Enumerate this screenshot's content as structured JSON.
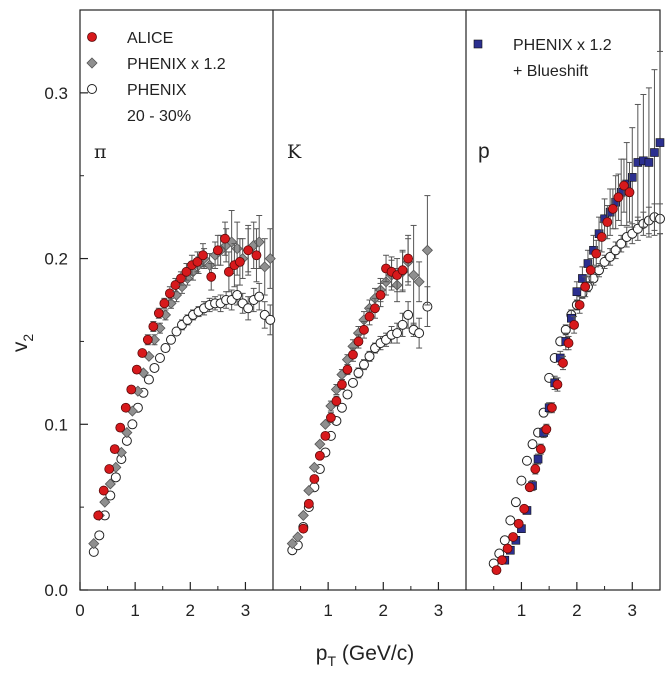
{
  "chart_data": {
    "type": "scatter",
    "y_axis": {
      "label_main": "v",
      "label_sub": "2",
      "range": [
        0.0,
        0.35
      ],
      "ticks": [
        "0.0",
        "0.1",
        "0.2",
        "0.3"
      ]
    },
    "x_axis": {
      "label_main": "p",
      "label_sub": "T",
      "label_rest": " (GeV/c)",
      "range": [
        0,
        3.5
      ]
    },
    "colors": {
      "alice": "#d7191c",
      "phenix_scaled": "#8f8f8f",
      "phenix_open": "#ffffff",
      "blueshift": "#2b2f8f",
      "errorbar": "#555555"
    },
    "panels": [
      {
        "label": "π",
        "x_ticks": [
          "0",
          "1",
          "2",
          "3"
        ],
        "legend": [
          {
            "marker": "circle-red",
            "text": "ALICE"
          },
          {
            "marker": "diamond-gray",
            "text": "PHENIX x 1.2"
          },
          {
            "marker": "circle-open",
            "text": "PHENIX"
          }
        ],
        "centrality": "20 - 30%",
        "series": [
          {
            "key": "alice",
            "x": [
              0.33,
              0.43,
              0.53,
              0.63,
              0.73,
              0.83,
              0.93,
              1.03,
              1.13,
              1.23,
              1.33,
              1.43,
              1.53,
              1.63,
              1.73,
              1.83,
              1.93,
              2.03,
              2.13,
              2.23,
              2.38,
              2.5,
              2.63,
              2.7,
              2.8,
              2.9,
              3.05,
              3.2
            ],
            "y": [
              0.045,
              0.06,
              0.073,
              0.085,
              0.098,
              0.11,
              0.121,
              0.133,
              0.143,
              0.151,
              0.159,
              0.167,
              0.173,
              0.179,
              0.184,
              0.188,
              0.192,
              0.196,
              0.198,
              0.202,
              0.189,
              0.205,
              0.212,
              0.192,
              0.196,
              0.198,
              0.205,
              0.202
            ],
            "err": [
              0.002,
              0.002,
              0.002,
              0.002,
              0.002,
              0.002,
              0.002,
              0.002,
              0.002,
              0.003,
              0.003,
              0.003,
              0.003,
              0.004,
              0.004,
              0.004,
              0.005,
              0.006,
              0.006,
              0.007,
              0.008,
              0.009,
              0.01,
              0.012,
              0.013,
              0.014,
              0.015,
              0.016
            ]
          },
          {
            "key": "phenix_scaled",
            "x": [
              0.25,
              0.35,
              0.45,
              0.55,
              0.65,
              0.75,
              0.85,
              0.95,
              1.05,
              1.15,
              1.25,
              1.35,
              1.45,
              1.55,
              1.65,
              1.75,
              1.85,
              1.95,
              2.05,
              2.15,
              2.25,
              2.35,
              2.45,
              2.55,
              2.65,
              2.75,
              2.85,
              2.95,
              3.05,
              3.15,
              3.25,
              3.35,
              3.45
            ],
            "y": [
              0.028,
              0.045,
              0.053,
              0.064,
              0.074,
              0.083,
              0.095,
              0.108,
              0.12,
              0.131,
              0.141,
              0.151,
              0.158,
              0.166,
              0.173,
              0.178,
              0.183,
              0.188,
              0.192,
              0.196,
              0.2,
              0.196,
              0.202,
              0.205,
              0.208,
              0.21,
              0.206,
              0.2,
              0.205,
              0.208,
              0.21,
              0.195,
              0.2
            ],
            "err": [
              0.002,
              0.002,
              0.002,
              0.002,
              0.002,
              0.002,
              0.002,
              0.002,
              0.002,
              0.002,
              0.002,
              0.003,
              0.003,
              0.003,
              0.003,
              0.004,
              0.004,
              0.004,
              0.005,
              0.005,
              0.006,
              0.007,
              0.008,
              0.009,
              0.01,
              0.019,
              0.016,
              0.012,
              0.013,
              0.014,
              0.016,
              0.017,
              0.018
            ]
          },
          {
            "key": "phenix_open",
            "x": [
              0.25,
              0.35,
              0.45,
              0.55,
              0.65,
              0.75,
              0.85,
              0.95,
              1.05,
              1.15,
              1.25,
              1.35,
              1.45,
              1.55,
              1.65,
              1.75,
              1.85,
              1.95,
              2.05,
              2.15,
              2.25,
              2.35,
              2.45,
              2.55,
              2.65,
              2.75,
              2.85,
              2.95,
              3.05,
              3.15,
              3.25,
              3.35,
              3.45
            ],
            "y": [
              0.023,
              0.033,
              0.045,
              0.057,
              0.068,
              0.079,
              0.09,
              0.1,
              0.11,
              0.119,
              0.127,
              0.134,
              0.14,
              0.146,
              0.151,
              0.156,
              0.16,
              0.163,
              0.166,
              0.168,
              0.17,
              0.172,
              0.173,
              0.173,
              0.175,
              0.175,
              0.178,
              0.173,
              0.17,
              0.175,
              0.177,
              0.166,
              0.163
            ],
            "err": [
              0.001,
              0.001,
              0.001,
              0.001,
              0.001,
              0.001,
              0.001,
              0.001,
              0.001,
              0.001,
              0.001,
              0.002,
              0.002,
              0.002,
              0.002,
              0.002,
              0.003,
              0.003,
              0.003,
              0.003,
              0.004,
              0.004,
              0.004,
              0.005,
              0.005,
              0.006,
              0.006,
              0.006,
              0.007,
              0.007,
              0.008,
              0.008,
              0.009
            ]
          }
        ]
      },
      {
        "label": "K",
        "x_ticks": [
          "1",
          "2",
          "3"
        ],
        "series": [
          {
            "key": "alice",
            "x": [
              0.55,
              0.65,
              0.75,
              0.85,
              0.95,
              1.05,
              1.15,
              1.25,
              1.35,
              1.45,
              1.55,
              1.65,
              1.75,
              1.85,
              1.95,
              2.05,
              2.15,
              2.25,
              2.35,
              2.45
            ],
            "y": [
              0.037,
              0.052,
              0.067,
              0.081,
              0.093,
              0.104,
              0.114,
              0.124,
              0.133,
              0.142,
              0.15,
              0.157,
              0.165,
              0.17,
              0.178,
              0.194,
              0.192,
              0.19,
              0.193,
              0.2
            ],
            "err": [
              0.002,
              0.002,
              0.002,
              0.002,
              0.002,
              0.003,
              0.003,
              0.003,
              0.003,
              0.004,
              0.004,
              0.005,
              0.005,
              0.006,
              0.007,
              0.008,
              0.009,
              0.01,
              0.012,
              0.014
            ]
          },
          {
            "key": "phenix_scaled",
            "x": [
              0.35,
              0.45,
              0.55,
              0.65,
              0.75,
              0.85,
              0.95,
              1.05,
              1.15,
              1.25,
              1.35,
              1.45,
              1.55,
              1.65,
              1.75,
              1.85,
              1.95,
              2.05,
              2.15,
              2.25,
              2.35,
              2.45,
              2.55,
              2.65,
              2.8
            ],
            "y": [
              0.028,
              0.032,
              0.045,
              0.06,
              0.074,
              0.088,
              0.1,
              0.111,
              0.121,
              0.13,
              0.139,
              0.147,
              0.155,
              0.163,
              0.17,
              0.176,
              0.181,
              0.186,
              0.19,
              0.184,
              0.192,
              0.198,
              0.19,
              0.186,
              0.205
            ],
            "err": [
              0.002,
              0.002,
              0.002,
              0.002,
              0.002,
              0.002,
              0.002,
              0.003,
              0.003,
              0.003,
              0.003,
              0.004,
              0.004,
              0.005,
              0.005,
              0.006,
              0.007,
              0.008,
              0.009,
              0.01,
              0.012,
              0.014,
              0.03,
              0.012,
              0.033
            ]
          },
          {
            "key": "phenix_open",
            "x": [
              0.35,
              0.45,
              0.55,
              0.65,
              0.75,
              0.85,
              0.95,
              1.05,
              1.15,
              1.25,
              1.35,
              1.45,
              1.55,
              1.65,
              1.75,
              1.85,
              1.95,
              2.05,
              2.15,
              2.25,
              2.35,
              2.45,
              2.55,
              2.65,
              2.8
            ],
            "y": [
              0.024,
              0.027,
              0.038,
              0.05,
              0.062,
              0.073,
              0.083,
              0.093,
              0.102,
              0.11,
              0.118,
              0.125,
              0.131,
              0.136,
              0.141,
              0.146,
              0.149,
              0.151,
              0.154,
              0.155,
              0.16,
              0.166,
              0.157,
              0.155,
              0.171
            ],
            "err": [
              0.001,
              0.001,
              0.001,
              0.001,
              0.001,
              0.001,
              0.001,
              0.002,
              0.002,
              0.002,
              0.002,
              0.002,
              0.003,
              0.003,
              0.003,
              0.003,
              0.004,
              0.004,
              0.005,
              0.006,
              0.007,
              0.008,
              0.004,
              0.009,
              0.012
            ]
          }
        ]
      },
      {
        "label": "p",
        "x_ticks": [
          "1",
          "2",
          "3"
        ],
        "legend": [
          {
            "marker": "square-blue",
            "text": "PHENIX x 1.2"
          },
          {
            "marker": "none",
            "text": "+ Blueshift"
          }
        ],
        "series": [
          {
            "key": "alice",
            "x": [
              0.55,
              0.65,
              0.75,
              0.85,
              0.95,
              1.05,
              1.15,
              1.25,
              1.35,
              1.45,
              1.55,
              1.65,
              1.75,
              1.85,
              1.95,
              2.05,
              2.15,
              2.25,
              2.35,
              2.45,
              2.55,
              2.65,
              2.75,
              2.85,
              2.95
            ],
            "y": [
              0.012,
              0.018,
              0.025,
              0.032,
              0.04,
              0.049,
              0.062,
              0.073,
              0.085,
              0.097,
              0.11,
              0.124,
              0.137,
              0.149,
              0.16,
              0.172,
              0.183,
              0.193,
              0.203,
              0.213,
              0.222,
              0.23,
              0.237,
              0.244,
              0.24
            ],
            "err": [
              0.002,
              0.002,
              0.002,
              0.002,
              0.002,
              0.002,
              0.002,
              0.003,
              0.003,
              0.003,
              0.003,
              0.004,
              0.004,
              0.004,
              0.005,
              0.005,
              0.006,
              0.007,
              0.008,
              0.009,
              0.01,
              0.012,
              0.014,
              0.016,
              0.018
            ]
          },
          {
            "key": "blueshift",
            "x": [
              0.7,
              0.8,
              0.9,
              1.0,
              1.1,
              1.2,
              1.3,
              1.4,
              1.5,
              1.6,
              1.7,
              1.8,
              1.9,
              2.0,
              2.1,
              2.2,
              2.3,
              2.4,
              2.5,
              2.6,
              2.7,
              2.8,
              2.9,
              3.0,
              3.1,
              3.2,
              3.3,
              3.4,
              3.5
            ],
            "y": [
              0.018,
              0.024,
              0.03,
              0.037,
              0.048,
              0.063,
              0.079,
              0.095,
              0.11,
              0.125,
              0.14,
              0.15,
              0.164,
              0.18,
              0.188,
              0.197,
              0.205,
              0.215,
              0.224,
              0.228,
              0.234,
              0.24,
              0.245,
              0.249,
              0.258,
              0.259,
              0.258,
              0.264,
              0.27
            ],
            "err": [
              0.002,
              0.002,
              0.002,
              0.002,
              0.002,
              0.003,
              0.003,
              0.003,
              0.003,
              0.004,
              0.004,
              0.005,
              0.005,
              0.006,
              0.007,
              0.008,
              0.009,
              0.01,
              0.012,
              0.014,
              0.016,
              0.02,
              0.025,
              0.03,
              0.035,
              0.04,
              0.045,
              0.05,
              0.055
            ]
          },
          {
            "key": "phenix_open",
            "x": [
              0.5,
              0.6,
              0.7,
              0.8,
              0.9,
              1.0,
              1.1,
              1.2,
              1.3,
              1.4,
              1.5,
              1.6,
              1.7,
              1.8,
              1.9,
              2.0,
              2.1,
              2.2,
              2.3,
              2.4,
              2.5,
              2.6,
              2.7,
              2.8,
              2.9,
              3.0,
              3.1,
              3.2,
              3.3,
              3.4,
              3.5
            ],
            "y": [
              0.016,
              0.022,
              0.03,
              0.042,
              0.053,
              0.066,
              0.078,
              0.088,
              0.095,
              0.107,
              0.128,
              0.14,
              0.15,
              0.157,
              0.166,
              0.172,
              0.179,
              0.183,
              0.188,
              0.193,
              0.198,
              0.201,
              0.205,
              0.209,
              0.213,
              0.215,
              0.218,
              0.221,
              0.223,
              0.225,
              0.224
            ],
            "err": [
              0.001,
              0.001,
              0.001,
              0.001,
              0.001,
              0.001,
              0.001,
              0.002,
              0.002,
              0.002,
              0.002,
              0.002,
              0.002,
              0.003,
              0.003,
              0.003,
              0.003,
              0.003,
              0.004,
              0.004,
              0.004,
              0.005,
              0.005,
              0.005,
              0.006,
              0.006,
              0.007,
              0.007,
              0.008,
              0.008,
              0.009
            ]
          }
        ]
      }
    ]
  }
}
